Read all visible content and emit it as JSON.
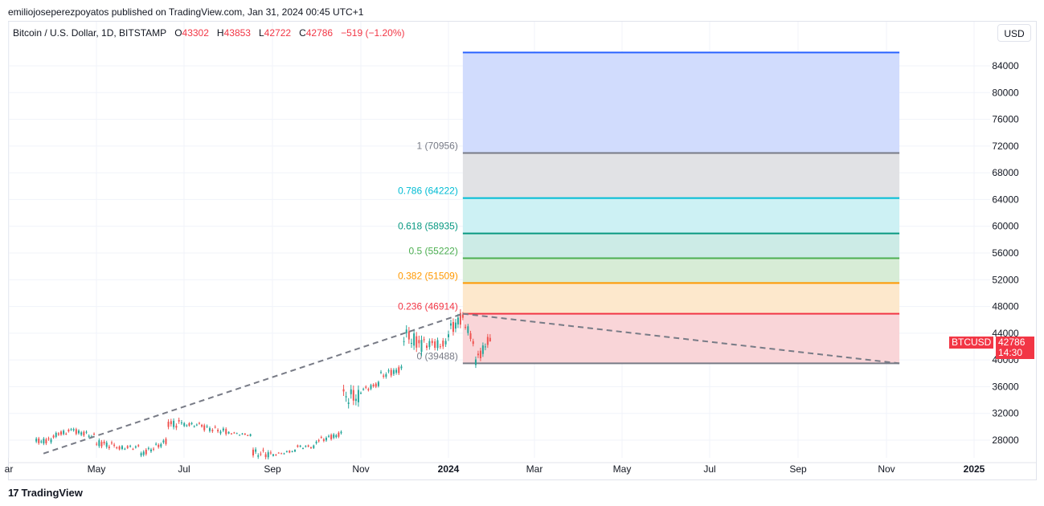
{
  "header": {
    "published": "emiliojoseperezpoyatos published on TradingView.com, Jan 31, 2024 00:45 UTC+1"
  },
  "legend": {
    "symbol": "Bitcoin / U.S. Dollar, 1D, BITSTAMP",
    "o_label": "O",
    "o_value": "43302",
    "h_label": "H",
    "h_value": "43853",
    "l_label": "L",
    "l_value": "42722",
    "c_label": "C",
    "c_value": "42786",
    "change": "−519 (−1.20%)"
  },
  "currency_button": "USD",
  "price_badge": {
    "ticker": "BTCUSD",
    "price": "42786",
    "countdown": "14:30"
  },
  "footer": {
    "brand": "TradingView",
    "logo": "17"
  },
  "colors": {
    "up": "#26a69a",
    "down": "#ef5350",
    "trend": "#787b86",
    "fib_1": "#787b86",
    "fib_786": "#00bcd4",
    "fib_618": "#089981",
    "fib_5": "#4caf50",
    "fib_382": "#ff9800",
    "fib_236": "#f23645",
    "fib_0": "#787b86",
    "ext": "#2962ff"
  },
  "chart_data": {
    "type": "candlestick",
    "title": "Bitcoin / U.S. Dollar, 1D, BITSTAMP",
    "x_ticks": [
      "ar",
      "May",
      "Jul",
      "Sep",
      "Nov",
      "2024",
      "Mar",
      "May",
      "Jul",
      "Sep",
      "Nov",
      "2025"
    ],
    "y_ticks": [
      28000,
      32000,
      36000,
      40000,
      44000,
      48000,
      52000,
      56000,
      60000,
      64000,
      68000,
      72000,
      76000,
      80000,
      84000
    ],
    "ylim": [
      26000,
      87000
    ],
    "series": [
      {
        "name": "BTCUSD",
        "candles_monthly_approx": [
          {
            "x": "2023-03-20",
            "o": 26500,
            "h": 28500,
            "l": 26200,
            "c": 27800
          },
          {
            "x": "2023-04-01",
            "o": 28000,
            "h": 29500,
            "l": 27700,
            "c": 28700
          },
          {
            "x": "2023-04-15",
            "o": 29500,
            "h": 31000,
            "l": 29000,
            "c": 29400
          },
          {
            "x": "2023-05-01",
            "o": 28500,
            "h": 29800,
            "l": 27200,
            "c": 27600
          },
          {
            "x": "2023-05-15",
            "o": 27100,
            "h": 27600,
            "l": 26100,
            "c": 26800
          },
          {
            "x": "2023-06-01",
            "o": 27000,
            "h": 27400,
            "l": 25200,
            "c": 25900
          },
          {
            "x": "2023-06-20",
            "o": 28000,
            "h": 31200,
            "l": 27900,
            "c": 30400
          },
          {
            "x": "2023-07-01",
            "o": 30500,
            "h": 31500,
            "l": 30000,
            "c": 30300
          },
          {
            "x": "2023-07-15",
            "o": 30300,
            "h": 31800,
            "l": 29500,
            "c": 29900
          },
          {
            "x": "2023-08-01",
            "o": 29200,
            "h": 29700,
            "l": 28900,
            "c": 29100
          },
          {
            "x": "2023-08-18",
            "o": 28700,
            "h": 28800,
            "l": 25800,
            "c": 26100
          },
          {
            "x": "2023-09-01",
            "o": 25900,
            "h": 26300,
            "l": 25400,
            "c": 25800
          },
          {
            "x": "2023-09-18",
            "o": 26500,
            "h": 27500,
            "l": 26300,
            "c": 27000
          },
          {
            "x": "2023-10-01",
            "o": 27000,
            "h": 28600,
            "l": 26600,
            "c": 27900
          },
          {
            "x": "2023-10-20",
            "o": 29000,
            "h": 35000,
            "l": 28800,
            "c": 34500
          },
          {
            "x": "2023-11-01",
            "o": 34500,
            "h": 35900,
            "l": 34000,
            "c": 35400
          },
          {
            "x": "2023-11-15",
            "o": 36500,
            "h": 38400,
            "l": 35700,
            "c": 37700
          },
          {
            "x": "2023-12-01",
            "o": 38700,
            "h": 44500,
            "l": 38500,
            "c": 43800
          },
          {
            "x": "2023-12-15",
            "o": 42000,
            "h": 44200,
            "l": 40600,
            "c": 42500
          },
          {
            "x": "2024-01-01",
            "o": 42200,
            "h": 45900,
            "l": 40800,
            "c": 44200
          },
          {
            "x": "2024-01-11",
            "o": 46600,
            "h": 49000,
            "l": 45600,
            "c": 46300
          },
          {
            "x": "2024-01-20",
            "o": 41600,
            "h": 42600,
            "l": 38500,
            "c": 39800
          },
          {
            "x": "2024-01-30",
            "o": 43302,
            "h": 43853,
            "l": 42722,
            "c": 42786
          }
        ]
      }
    ],
    "fibonacci": [
      {
        "level": "1",
        "price": 70956,
        "label": "1 (70956)"
      },
      {
        "level": "0.786",
        "price": 64222,
        "label": "0.786 (64222)"
      },
      {
        "level": "0.618",
        "price": 58935,
        "label": "0.618 (58935)"
      },
      {
        "level": "0.5",
        "price": 55222,
        "label": "0.5 (55222)"
      },
      {
        "level": "0.382",
        "price": 51509,
        "label": "0.382 (51509)"
      },
      {
        "level": "0.236",
        "price": 46914,
        "label": "0.236 (46914)"
      },
      {
        "level": "0",
        "price": 39488,
        "label": "0 (39488)"
      }
    ],
    "extension_top": 86000,
    "trend_lines": [
      {
        "from": {
          "x": "2023-03-25",
          "y": 26000
        },
        "to": {
          "x": "2024-01-11",
          "y": 46914
        }
      },
      {
        "from": {
          "x": "2024-01-11",
          "y": 46914
        },
        "to": {
          "x": "2024-11-10",
          "y": 39488
        }
      }
    ]
  }
}
